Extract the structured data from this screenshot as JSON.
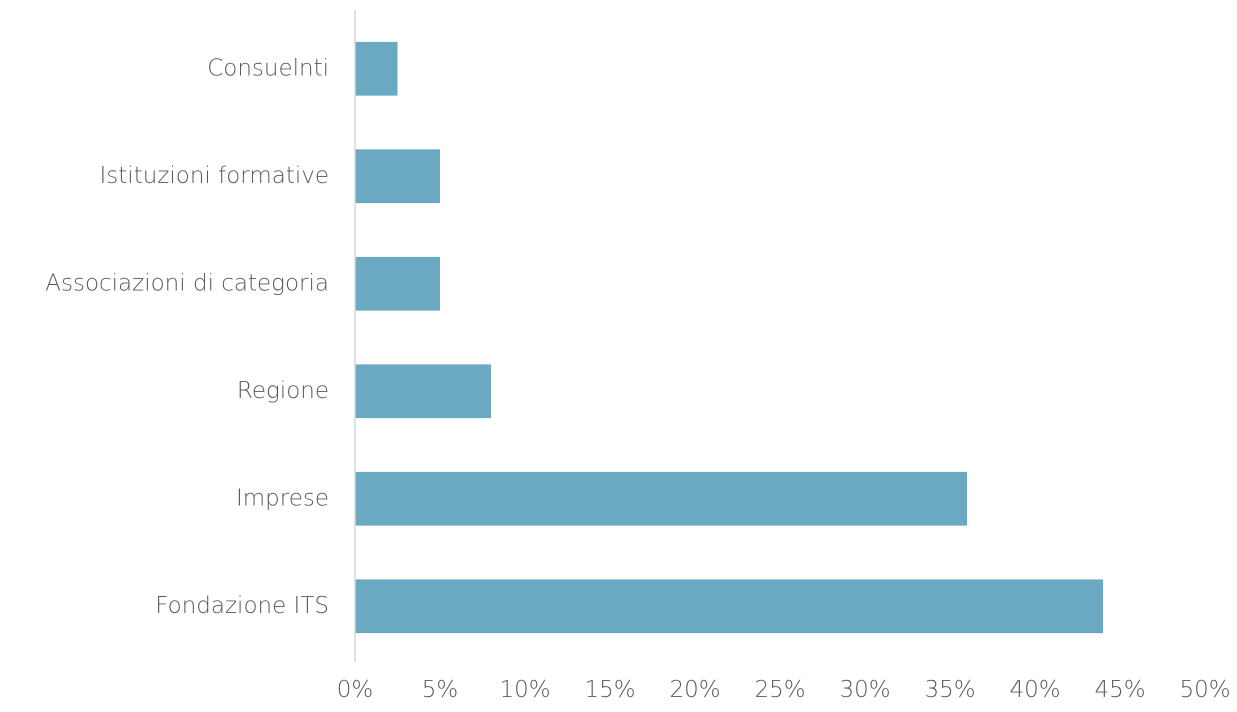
{
  "chart_data": {
    "type": "bar",
    "orientation": "horizontal",
    "title": "",
    "xlabel": "",
    "ylabel": "",
    "categories": [
      "Consuelnti",
      "Istituzioni formative",
      "Associazioni di categoria",
      "Regione",
      "Imprese",
      "Fondazione ITS"
    ],
    "values": [
      2.5,
      5,
      5,
      8,
      36,
      44
    ],
    "xlim": [
      0,
      50
    ],
    "x_ticks": [
      "0%",
      "5%",
      "10%",
      "15%",
      "20%",
      "25%",
      "30%",
      "35%",
      "40%",
      "45%",
      "50%"
    ],
    "grid": false,
    "legend": "none",
    "colors": {
      "bar": "#6aa9c1",
      "axis": "#d9d9d9",
      "text": "#595959"
    }
  }
}
